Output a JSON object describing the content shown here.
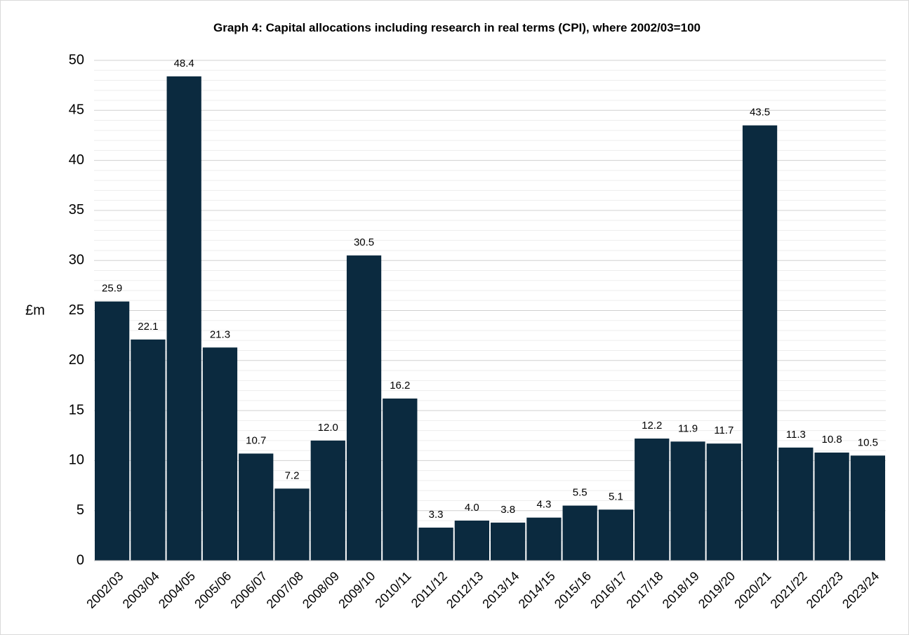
{
  "chart_data": {
    "type": "bar",
    "title": "Graph 4: Capital allocations including research in real terms (CPI), where 2002/03=100",
    "y_label": "£m",
    "categories": [
      "2002/03",
      "2003/04",
      "2004/05",
      "2005/06",
      "2006/07",
      "2007/08",
      "2008/09",
      "2009/10",
      "2010/11",
      "2011/12",
      "2012/13",
      "2013/14",
      "2014/15",
      "2015/16",
      "2016/17",
      "2017/18",
      "2018/19",
      "2019/20",
      "2020/21",
      "2021/22",
      "2022/23",
      "2023/24"
    ],
    "values": [
      25.9,
      22.1,
      48.4,
      21.3,
      10.7,
      7.2,
      12.0,
      30.5,
      16.2,
      3.3,
      4.0,
      3.8,
      4.3,
      5.5,
      5.1,
      12.2,
      11.9,
      11.7,
      43.5,
      11.3,
      10.8,
      10.5
    ],
    "value_labels": [
      "25.9",
      "22.1",
      "48.4",
      "21.3",
      "10.7",
      "7.2",
      "12.0",
      "30.5",
      "16.2",
      "3.3",
      "4.0",
      "3.8",
      "4.3",
      "5.5",
      "5.1",
      "12.2",
      "11.9",
      "11.7",
      "43.5",
      "11.3",
      "10.8",
      "10.5"
    ],
    "color": "#0b2a3f",
    "ylim": [
      0,
      50
    ],
    "yticks": [
      0,
      5,
      10,
      15,
      20,
      25,
      30,
      35,
      40,
      45,
      50
    ],
    "grid": true,
    "minor_grid": true
  }
}
